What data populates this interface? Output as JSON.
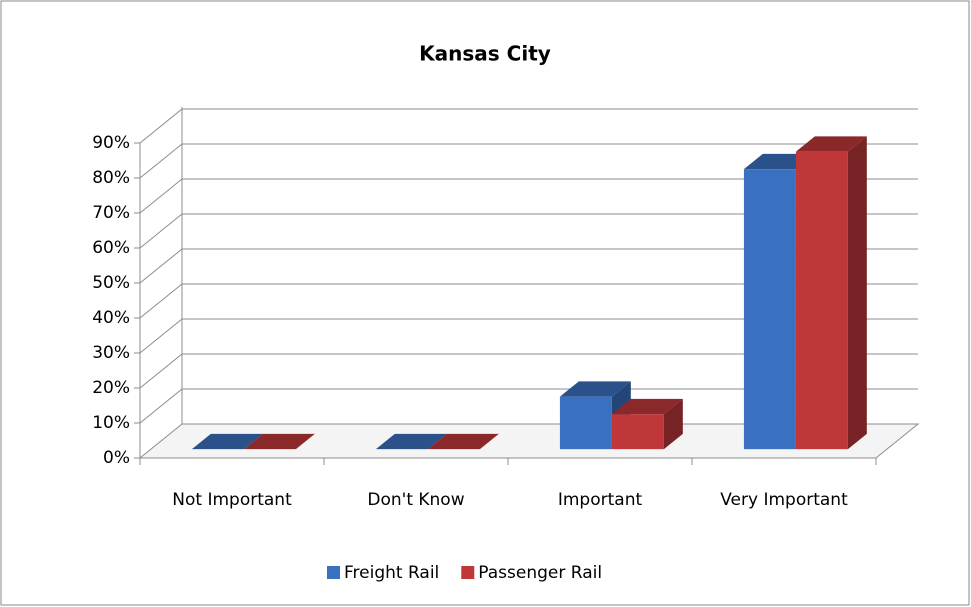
{
  "chart_data": {
    "type": "bar3d",
    "title": "Kansas City",
    "categories": [
      "Not Important",
      "Don't Know",
      "Important",
      "Very Important"
    ],
    "series": [
      {
        "name": "Freight Rail",
        "color": "#3a70c0",
        "values": [
          0,
          0,
          15,
          80
        ]
      },
      {
        "name": "Passenger Rail",
        "color": "#c0373a",
        "values": [
          0,
          0,
          10,
          85
        ]
      }
    ],
    "ylim": [
      0,
      90
    ],
    "yticks": [
      {
        "value": 0,
        "label": "0%"
      },
      {
        "value": 10,
        "label": "10%"
      },
      {
        "value": 20,
        "label": "20%"
      },
      {
        "value": 30,
        "label": "30%"
      },
      {
        "value": 40,
        "label": "40%"
      },
      {
        "value": 50,
        "label": "50%"
      },
      {
        "value": 60,
        "label": "60%"
      },
      {
        "value": 70,
        "label": "70%"
      },
      {
        "value": 80,
        "label": "80%"
      },
      {
        "value": 90,
        "label": "90%"
      }
    ],
    "grid": true,
    "legend": "bottom"
  }
}
